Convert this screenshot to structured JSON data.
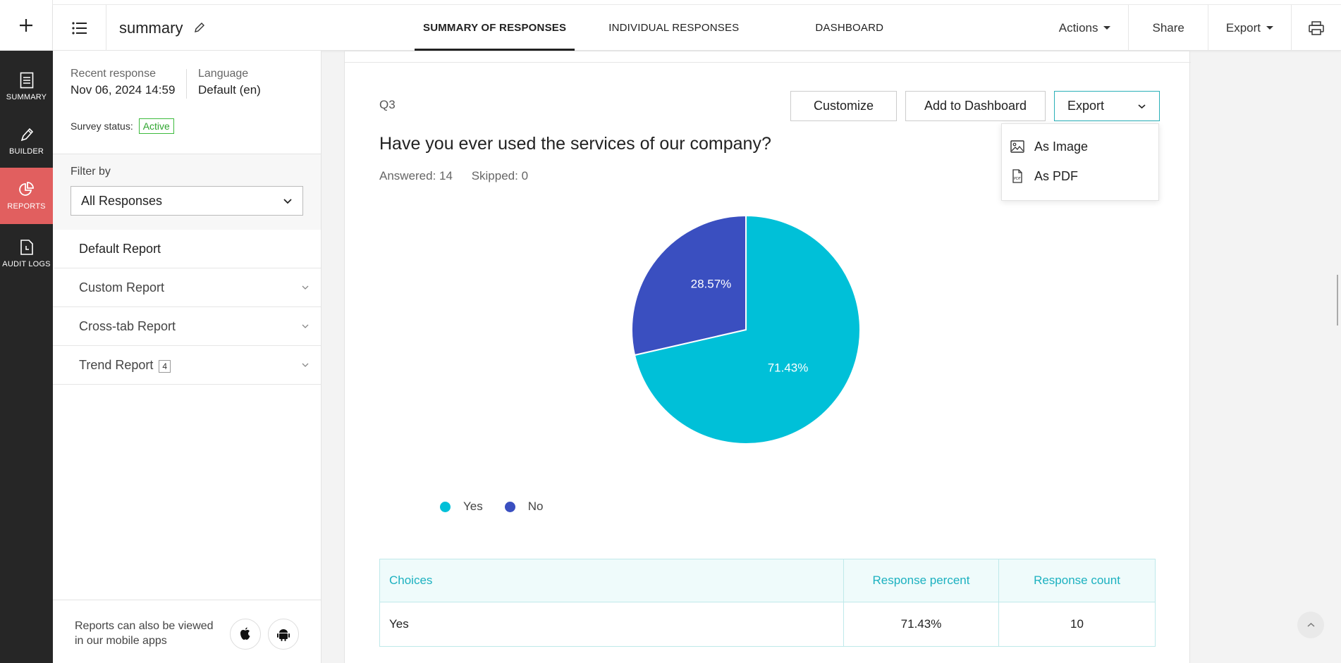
{
  "header": {
    "survey_name": "summary",
    "tabs": [
      "SUMMARY OF RESPONSES",
      "INDIVIDUAL RESPONSES",
      "DASHBOARD"
    ],
    "active_tab": "SUMMARY OF RESPONSES",
    "actions_label": "Actions",
    "share_label": "Share",
    "export_label": "Export"
  },
  "rail": {
    "items": [
      {
        "label": "SUMMARY",
        "icon": "document-icon"
      },
      {
        "label": "BUILDER",
        "icon": "pencil-icon"
      },
      {
        "label": "REPORTS",
        "icon": "pie-chart-icon"
      },
      {
        "label": "AUDIT LOGS",
        "icon": "audit-log-icon"
      }
    ],
    "active": "REPORTS"
  },
  "sidebar": {
    "recent_response_label": "Recent response",
    "recent_response_value": "Nov 06, 2024 14:59",
    "language_label": "Language",
    "language_value": "Default (en)",
    "status_label": "Survey status:",
    "status_value": "Active",
    "filter_label": "Filter by",
    "filter_value": "All Responses",
    "reports": [
      {
        "label": "Default Report",
        "count": ""
      },
      {
        "label": "Custom Report",
        "count": ""
      },
      {
        "label": "Cross-tab Report",
        "count": ""
      },
      {
        "label": "Trend Report",
        "count": "4"
      }
    ],
    "mobile_text": "Reports can also be viewed in our mobile apps"
  },
  "question": {
    "number": "Q3",
    "title": "Have you ever used the services of our company?",
    "answered": "Answered: 14",
    "skipped": "Skipped: 0",
    "customize_label": "Customize",
    "add_dashboard_label": "Add to Dashboard",
    "export_label": "Export",
    "export_menu": [
      "As Image",
      "As PDF"
    ]
  },
  "chart_data": {
    "type": "pie",
    "categories": [
      "Yes",
      "No"
    ],
    "values": [
      71.43,
      28.57
    ],
    "data_labels": [
      "71.43%",
      "28.57%"
    ],
    "colors": [
      "#00c0d8",
      "#3a4fc0"
    ],
    "legend": "bottom-left"
  },
  "table": {
    "headers": [
      "Choices",
      "Response percent",
      "Response count"
    ],
    "rows": [
      {
        "choice": "Yes",
        "percent": "71.43%",
        "count": "10"
      }
    ]
  }
}
